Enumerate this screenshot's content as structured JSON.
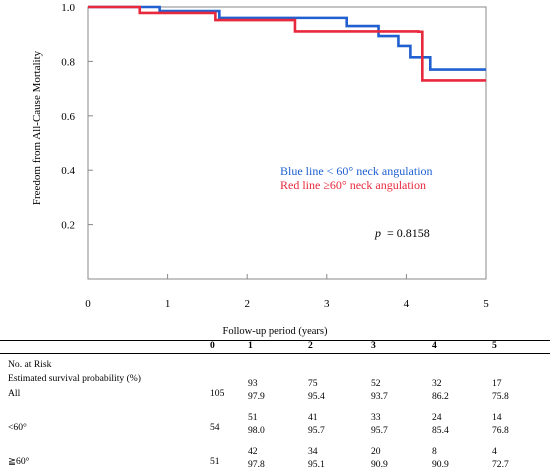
{
  "chart_data": {
    "type": "line",
    "ylabel": "Freedom from All-Cause Mortality",
    "xlabel": "Follow-up period (years)",
    "xlim": [
      0,
      5
    ],
    "ylim": [
      0,
      1.0
    ],
    "x_ticks": [
      "0",
      "1",
      "2",
      "3",
      "4",
      "5"
    ],
    "y_ticks": [
      "0.2",
      "0.4",
      "0.6",
      "0.8",
      "1.0"
    ],
    "grid": false,
    "series": [
      {
        "name": "Blue line < 60° neck angulation",
        "color": "#2060d0",
        "steps": [
          [
            0,
            1.0
          ],
          [
            0.9,
            0.985
          ],
          [
            1.65,
            0.96
          ],
          [
            3.25,
            0.93
          ],
          [
            3.65,
            0.893
          ],
          [
            3.9,
            0.857
          ],
          [
            4.05,
            0.815
          ],
          [
            4.3,
            0.77
          ],
          [
            5,
            0.77
          ]
        ]
      },
      {
        "name": "Red line ≥60° neck angulation",
        "color": "#e8283c",
        "steps": [
          [
            0,
            1.0
          ],
          [
            0.65,
            0.978
          ],
          [
            1.6,
            0.952
          ],
          [
            2.6,
            0.91
          ],
          [
            4.15,
            0.909
          ],
          [
            4.2,
            0.73
          ],
          [
            5,
            0.73
          ]
        ]
      }
    ],
    "annotation": {
      "p_label": "p",
      "p_value": "= 0.8158"
    }
  },
  "risk_table": {
    "columns": [
      "0",
      "1",
      "2",
      "3",
      "4",
      "5"
    ],
    "header_lines": [
      "No. at Risk",
      "Estimated survival probability (%)"
    ],
    "rows": [
      {
        "label": "All",
        "at_risk": [
          "105",
          "93",
          "75",
          "52",
          "32",
          "17"
        ],
        "survival": [
          "97.9",
          "95.4",
          "93.7",
          "86.2",
          "75.8"
        ]
      },
      {
        "label": "<60°",
        "at_risk": [
          "54",
          "51",
          "41",
          "33",
          "24",
          "14"
        ],
        "survival": [
          "98.0",
          "95.7",
          "95.7",
          "85.4",
          "76.8"
        ]
      },
      {
        "label": "≧60°",
        "at_risk": [
          "51",
          "42",
          "34",
          "20",
          "8",
          "4"
        ],
        "survival": [
          "97.8",
          "95.1",
          "90.9",
          "90.9",
          "72.7"
        ]
      }
    ]
  }
}
